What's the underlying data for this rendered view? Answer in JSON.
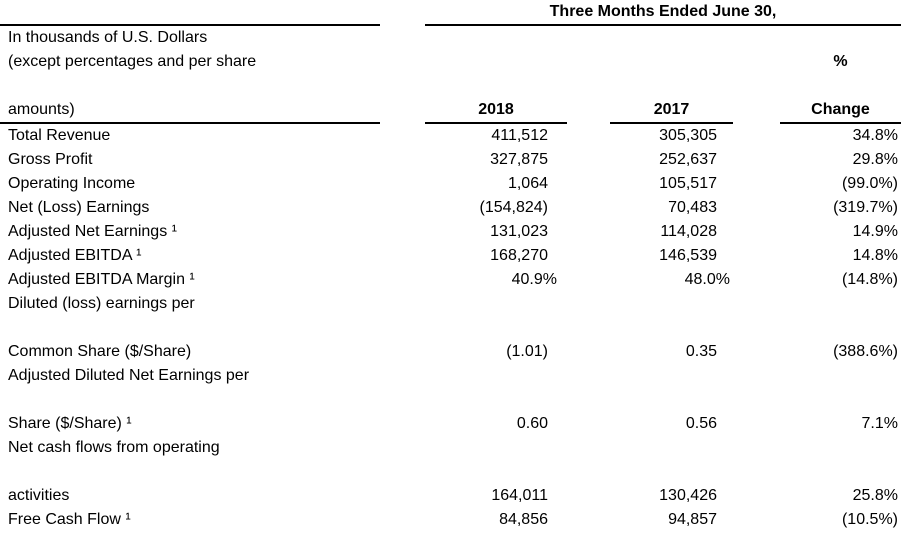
{
  "table": {
    "period_title": "Three Months Ended June 30,",
    "unit_note": {
      "line1": "In thousands of U.S. Dollars",
      "line2": "(except percentages and per share",
      "line3": "amounts)"
    },
    "column_headers": {
      "y2018": "2018",
      "y2017": "2017",
      "percent": "%",
      "change": "Change"
    },
    "rows": [
      {
        "label": "Total Revenue",
        "y2018": "411,512",
        "y2017": "305,305",
        "change": "34.8%"
      },
      {
        "label": "Gross Profit",
        "y2018": "327,875",
        "y2017": "252,637",
        "change": "29.8%"
      },
      {
        "label": "Operating Income",
        "y2018": "1,064",
        "y2017": "105,517",
        "change": "(99.0%)"
      },
      {
        "label": "Net (Loss) Earnings",
        "y2018": "(154,824)",
        "y2017": "70,483",
        "change": "(319.7%)"
      },
      {
        "label": "Adjusted Net Earnings ¹",
        "y2018": "131,023",
        "y2017": "114,028",
        "change": "14.9%"
      },
      {
        "label": "Adjusted EBITDA ¹",
        "y2018": "168,270",
        "y2017": "146,539",
        "change": "14.8%"
      },
      {
        "label": "Adjusted EBITDA Margin ¹",
        "y2018": "40.9%",
        "y2017": "48.0%",
        "change": "(14.8%)"
      },
      {
        "label": "Diluted (loss) earnings per",
        "y2018": "",
        "y2017": "",
        "change": ""
      },
      {
        "label": "",
        "y2018": "",
        "y2017": "",
        "change": ""
      },
      {
        "label": "Common Share ($/Share)",
        "y2018": "(1.01)",
        "y2017": "0.35",
        "change": "(388.6%)"
      },
      {
        "label": "Adjusted Diluted Net Earnings per",
        "y2018": "",
        "y2017": "",
        "change": ""
      },
      {
        "label": "",
        "y2018": "",
        "y2017": "",
        "change": ""
      },
      {
        "label": "Share ($/Share) ¹",
        "y2018": "0.60",
        "y2017": "0.56",
        "change": "7.1%"
      },
      {
        "label": "Net cash flows from operating",
        "y2018": "",
        "y2017": "",
        "change": ""
      },
      {
        "label": "",
        "y2018": "",
        "y2017": "",
        "change": ""
      },
      {
        "label": "activities",
        "y2018": "164,011",
        "y2017": "130,426",
        "change": "25.8%"
      },
      {
        "label": "Free Cash Flow ¹",
        "y2018": "84,856",
        "y2017": "94,857",
        "change": "(10.5%)"
      }
    ]
  }
}
